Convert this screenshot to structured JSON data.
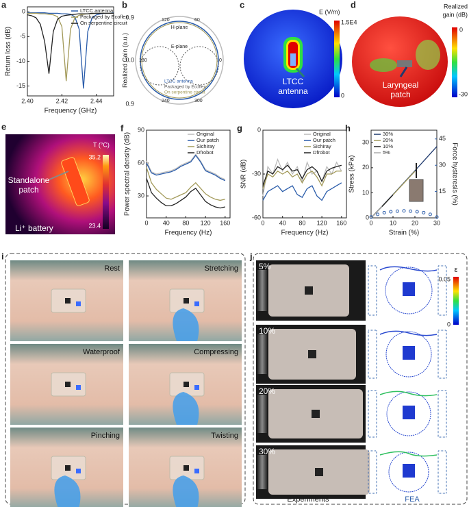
{
  "chart_data": [
    {
      "type": "line",
      "label": "a",
      "xlabel": "Frequency (GHz)",
      "ylabel": "Return loss (dB)",
      "legend": "upper right",
      "x": [
        2.4,
        2.4025,
        2.405,
        2.4075,
        2.41,
        2.4125,
        2.415,
        2.4175,
        2.42,
        2.4225,
        2.425,
        2.4275,
        2.43,
        2.4325,
        2.435,
        2.4375,
        2.44,
        2.4425,
        2.445,
        2.4475,
        2.45
      ],
      "xlim": [
        2.4,
        2.45
      ],
      "xticks": [
        {
          "value": 2.4,
          "label": "2.40"
        },
        {
          "value": 2.42,
          "label": "2.42"
        },
        {
          "value": 2.44,
          "label": "2.44"
        }
      ],
      "ylim": [
        -17,
        1
      ],
      "yticks": [
        0,
        -5,
        -10,
        -15
      ],
      "series": [
        {
          "name": "LTCC antenna",
          "color": "#2a5caa",
          "values": [
            -0.2,
            -0.2,
            -0.2,
            -0.2,
            -0.2,
            -0.3,
            -0.3,
            -0.3,
            -0.4,
            -0.4,
            -0.5,
            -1.0,
            -3.5,
            -15.5,
            -4,
            -1.2,
            -0.6,
            -0.4,
            -0.3,
            -0.3,
            -0.2
          ]
        },
        {
          "name": "Packaged by Ecoflex",
          "color": "#a39a5a",
          "values": [
            -0.3,
            -0.3,
            -0.3,
            -0.4,
            -0.4,
            -0.5,
            -0.6,
            -1.0,
            -3.0,
            -14,
            -3.5,
            -1.2,
            -0.7,
            -0.5,
            -0.4,
            -0.4,
            -0.3,
            -0.3,
            -0.3,
            -0.3,
            -0.3
          ]
        },
        {
          "name": "On serpentine circuit",
          "color": "#222222",
          "values": [
            -0.6,
            -0.8,
            -1.2,
            -2.5,
            -6,
            -12.5,
            -4,
            -1.5,
            -0.9,
            -0.7,
            -0.6,
            -0.5,
            -0.4,
            -0.4,
            -0.4,
            -0.3,
            -0.3,
            -0.3,
            -0.3,
            -0.3,
            -0.3
          ]
        }
      ]
    },
    {
      "type": "line",
      "label": "f",
      "xlabel": "Frequency (Hz)",
      "ylabel": "Power spectral density (dB)",
      "legend": "upper right",
      "x": [
        0,
        10,
        20,
        30,
        40,
        50,
        60,
        70,
        80,
        90,
        100,
        110,
        120,
        130,
        140,
        150,
        160
      ],
      "xlim": [
        0,
        170
      ],
      "xticks": [
        0,
        40,
        80,
        120,
        160
      ],
      "ylim": [
        10,
        90
      ],
      "yticks": [
        30,
        60,
        90
      ],
      "series": [
        {
          "name": "Original",
          "color": "#bbbbbb",
          "values": [
            62,
            52,
            50,
            51,
            52,
            53,
            55,
            58,
            60,
            62,
            68,
            62,
            54,
            52,
            50,
            47,
            45
          ]
        },
        {
          "name": "Our patch",
          "color": "#2a5caa",
          "values": [
            60,
            51,
            49,
            50,
            51,
            52,
            54,
            57,
            59,
            61,
            67,
            61,
            53,
            51,
            49,
            46,
            44
          ]
        },
        {
          "name": "Sichiray",
          "color": "#a39a5a",
          "values": [
            56,
            42,
            36,
            32,
            28,
            27,
            29,
            31,
            33,
            38,
            42,
            37,
            32,
            29,
            27,
            26,
            27
          ]
        },
        {
          "name": "Dfrobot",
          "color": "#222222",
          "values": [
            46,
            33,
            28,
            24,
            21,
            21,
            23,
            26,
            29,
            34,
            37,
            31,
            25,
            22,
            20,
            19,
            20
          ]
        }
      ]
    },
    {
      "type": "line",
      "label": "g",
      "xlabel": "Frequency (Hz)",
      "ylabel": "SNR (dB)",
      "legend": "upper right",
      "x": [
        0,
        10,
        20,
        30,
        40,
        50,
        60,
        70,
        80,
        90,
        100,
        110,
        120,
        130,
        140,
        150,
        160
      ],
      "xlim": [
        0,
        170
      ],
      "xticks": [
        0,
        40,
        80,
        120,
        160
      ],
      "ylim": [
        -60,
        0
      ],
      "yticks": [
        -60,
        -30,
        0
      ],
      "series": [
        {
          "name": "Original",
          "color": "#bbbbbb",
          "values": [
            -45,
            -25,
            -30,
            -20,
            -28,
            -22,
            -30,
            -25,
            -35,
            -22,
            -30,
            -28,
            -35,
            -25,
            -30,
            -22,
            -28
          ]
        },
        {
          "name": "Our patch",
          "color": "#2a5caa",
          "values": [
            -48,
            -42,
            -40,
            -38,
            -42,
            -40,
            -38,
            -44,
            -46,
            -40,
            -38,
            -45,
            -48,
            -42,
            -40,
            -38,
            -36
          ]
        },
        {
          "name": "Sichiray",
          "color": "#a39a5a",
          "values": [
            -40,
            -30,
            -32,
            -28,
            -30,
            -28,
            -32,
            -30,
            -36,
            -30,
            -28,
            -32,
            -38,
            -30,
            -30,
            -28,
            -28
          ]
        },
        {
          "name": "Dfrobot",
          "color": "#222222",
          "values": [
            -38,
            -28,
            -30,
            -25,
            -27,
            -24,
            -28,
            -27,
            -33,
            -27,
            -25,
            -28,
            -35,
            -28,
            -26,
            -25,
            -24
          ]
        }
      ]
    },
    {
      "type": "line",
      "label": "h",
      "xlabel": "Strain (%)",
      "ylabel": "Stress (kPa)",
      "y2label": "Force hysteresis (%)",
      "legend": "upper left",
      "xlim": [
        0,
        30
      ],
      "xticks": [
        0,
        10,
        20,
        30
      ],
      "ylim": [
        0,
        35
      ],
      "yticks": [
        0,
        10,
        20,
        30
      ],
      "y2lim": [
        0,
        50
      ],
      "y2ticks": [
        15,
        30,
        45
      ],
      "series": [
        {
          "name": "30%",
          "color": "#1f3a6e",
          "x": [
            0,
            10,
            20,
            30
          ],
          "values": [
            0,
            9.3,
            18.8,
            28.5
          ]
        },
        {
          "name": "20%",
          "color": "#a39a5a",
          "x": [
            0,
            10,
            20
          ],
          "values": [
            0,
            9.2,
            18.6
          ]
        },
        {
          "name": "10%",
          "color": "#222222",
          "x": [
            0,
            5,
            10
          ],
          "values": [
            0,
            4.5,
            9.2
          ]
        },
        {
          "name": "5%",
          "color": "#aaaaaa",
          "x": [
            0,
            2.5,
            5
          ],
          "values": [
            0,
            2.2,
            4.5
          ]
        },
        {
          "type": "scatter",
          "axis": "y2",
          "color": "#2a5caa",
          "x": [
            0,
            3,
            6,
            9,
            12,
            15,
            18,
            21,
            24,
            27,
            30
          ],
          "values": [
            0.5,
            2,
            3,
            3.5,
            3.8,
            4,
            3.8,
            3.5,
            3,
            2,
            0.5
          ]
        }
      ]
    }
  ],
  "panels": {
    "b": {
      "label": "b",
      "ylabel": "Realized Gain (a.u.)",
      "rticks": [
        "0.9",
        "0.0",
        "0.9"
      ],
      "angles": [
        "120",
        "60",
        "180",
        "0",
        "240",
        "300"
      ],
      "h_plane": "H-plane",
      "e_plane": "E-plane",
      "legend": [
        "LTCC antenna",
        "Packaged by Ecoflex",
        "On serpentine circuit"
      ]
    },
    "c": {
      "label": "c",
      "colorbar_title": "E (V/m)",
      "colorbar_max": "1.5E4",
      "colorbar_min": "0",
      "annotation": [
        "LTCC",
        "antenna"
      ]
    },
    "d": {
      "label": "d",
      "colorbar_title": [
        "Realized",
        "gain (dB)"
      ],
      "colorbar_max": "0",
      "colorbar_min": "-30",
      "annotation": [
        "Laryngeal",
        "patch"
      ]
    },
    "e": {
      "label": "e",
      "colorbar_title": "T (°C)",
      "colorbar_max": "35.2",
      "colorbar_min": "23.4",
      "annotations": [
        [
          "Standalone",
          "patch"
        ],
        "Li⁺ battery"
      ]
    },
    "i": {
      "label": "i",
      "captions": [
        "Rest",
        "Stretching",
        "Waterproof",
        "Compressing",
        "Pinching",
        "Twisting"
      ]
    },
    "j": {
      "label": "j",
      "strains": [
        "5%",
        "10%",
        "20%",
        "30%"
      ],
      "colorbar_title": "ε",
      "colorbar_max": "0.05",
      "colorbar_min": "0",
      "experiments": "Experiments",
      "fea": "FEA"
    }
  }
}
